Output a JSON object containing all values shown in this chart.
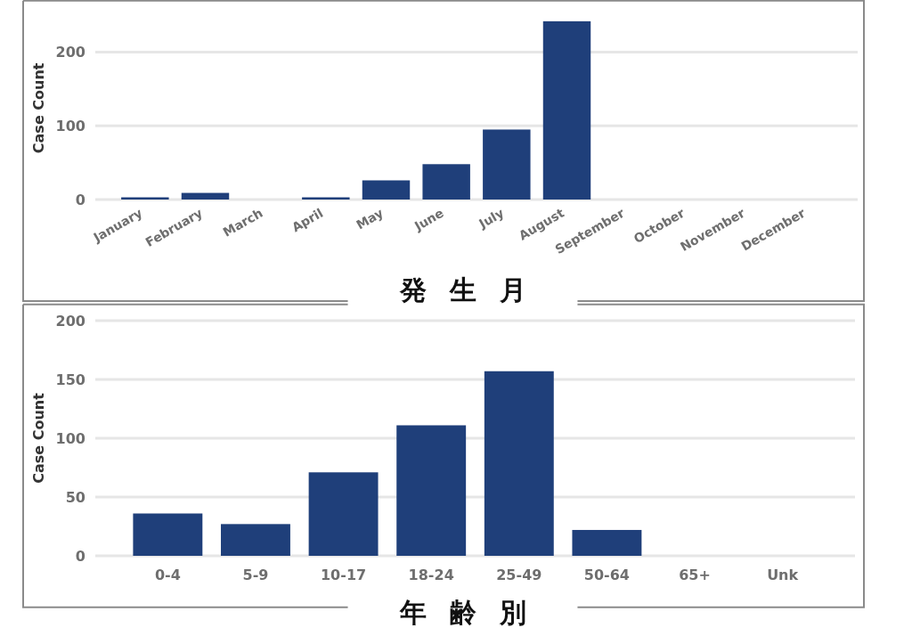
{
  "chart_data": [
    {
      "type": "bar",
      "xlabel": "発 生 月",
      "ylabel": "Case Count",
      "categories": [
        "January",
        "February",
        "March",
        "April",
        "May",
        "June",
        "July",
        "August",
        "September",
        "October",
        "November",
        "December"
      ],
      "values": [
        3,
        9,
        0,
        3,
        26,
        48,
        95,
        242,
        0,
        0,
        0,
        0
      ],
      "color": "#1f3f7a",
      "ylim": [
        0,
        270
      ],
      "yticks": [
        0,
        100,
        200
      ],
      "grid": "y"
    },
    {
      "type": "bar",
      "xlabel": "年 齢 別",
      "ylabel": "Case Count",
      "categories": [
        "0-4",
        "5-9",
        "10-17",
        "18-24",
        "25-49",
        "50-64",
        "65+",
        "Unk"
      ],
      "values": [
        36,
        27,
        71,
        111,
        157,
        22,
        0,
        0
      ],
      "color": "#1f3f7a",
      "ylim": [
        0,
        200
      ],
      "yticks": [
        0,
        50,
        100,
        150,
        200
      ],
      "grid": "y"
    }
  ]
}
